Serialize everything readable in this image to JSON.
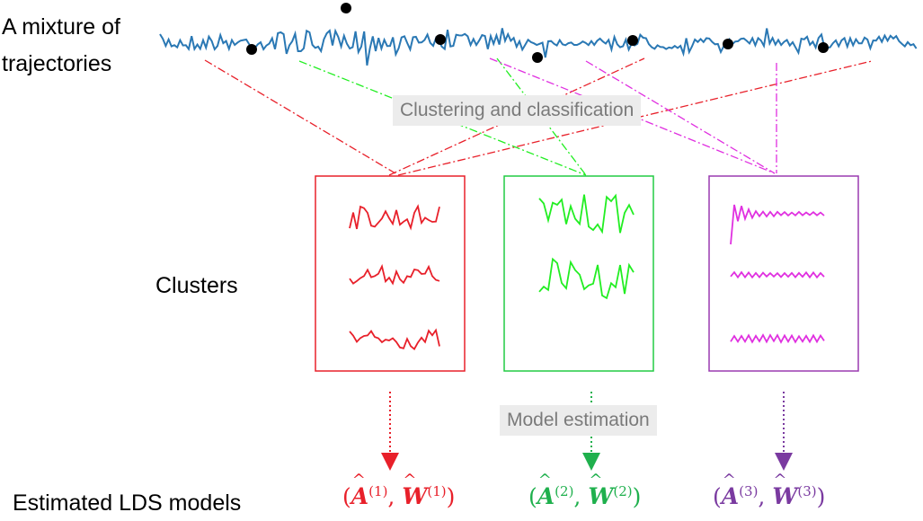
{
  "labels": {
    "mixture_line1": "A mixture of",
    "mixture_line2": "trajectories",
    "clusters": "Clusters",
    "estimated": "Estimated LDS models"
  },
  "banners": {
    "clustering": "Clustering and classification",
    "estimation": "Model estimation"
  },
  "models": [
    {
      "sym_a": "A",
      "sym_w": "W",
      "index": "(1)",
      "color": "#e8202a"
    },
    {
      "sym_a": "A",
      "sym_w": "W",
      "index": "(2)",
      "color": "#1fb04d"
    },
    {
      "sym_a": "A",
      "sym_w": "W",
      "index": "(3)",
      "color": "#7a3aa0"
    }
  ],
  "colors": {
    "trajectory": "#2a78b4",
    "cluster1": "#e8202a",
    "cluster2": "#22ee22",
    "cluster3": "#e030e0",
    "arrow1": "#e8202a",
    "arrow2": "#1fb04d",
    "arrow3": "#7a3aa0",
    "box1": "#e8202a",
    "box2": "#22cc44",
    "box3": "#9a3ab0"
  }
}
